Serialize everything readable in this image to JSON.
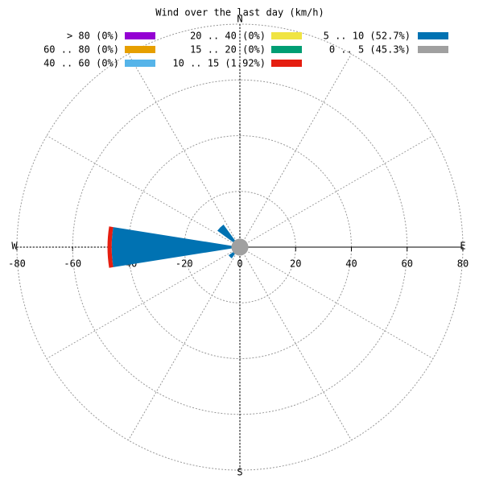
{
  "chart_data": {
    "type": "windrose",
    "title": "Wind over the last day (km/h)",
    "compass": [
      "N",
      "E",
      "S",
      "W"
    ],
    "x": [
      225,
      270,
      315
    ],
    "xlim": [
      -80,
      80
    ],
    "xticks": [
      -80,
      -60,
      -40,
      -20,
      0,
      20,
      40,
      60,
      80
    ],
    "series": [
      {
        "name": "0 .. 5 (45.3%)",
        "color": "#a0a0a0",
        "values": [
          3,
          3,
          3
        ]
      },
      {
        "name": "5 .. 10 (52.7%)",
        "color": "#0072b2",
        "values": [
          2,
          43,
          7
        ]
      },
      {
        "name": "10 .. 15 (1.92%)",
        "color": "#e51e10",
        "values": [
          0,
          1.5,
          0
        ]
      },
      {
        "name": "15 .. 20 (0%)",
        "color": "#009e73",
        "values": [
          0,
          0,
          0
        ]
      },
      {
        "name": "20 .. 40 (0%)",
        "color": "#f0e442",
        "values": [
          0,
          0,
          0
        ]
      },
      {
        "name": "40 .. 60 (0%)",
        "color": "#56b4e9",
        "values": [
          0,
          0,
          0
        ]
      },
      {
        "name": "60 .. 80 (0%)",
        "color": "#e69f00",
        "values": [
          0,
          0,
          0
        ]
      },
      {
        "name": "> 80 (0%)",
        "color": "#9400d3",
        "values": [
          0,
          0,
          0
        ]
      }
    ]
  }
}
